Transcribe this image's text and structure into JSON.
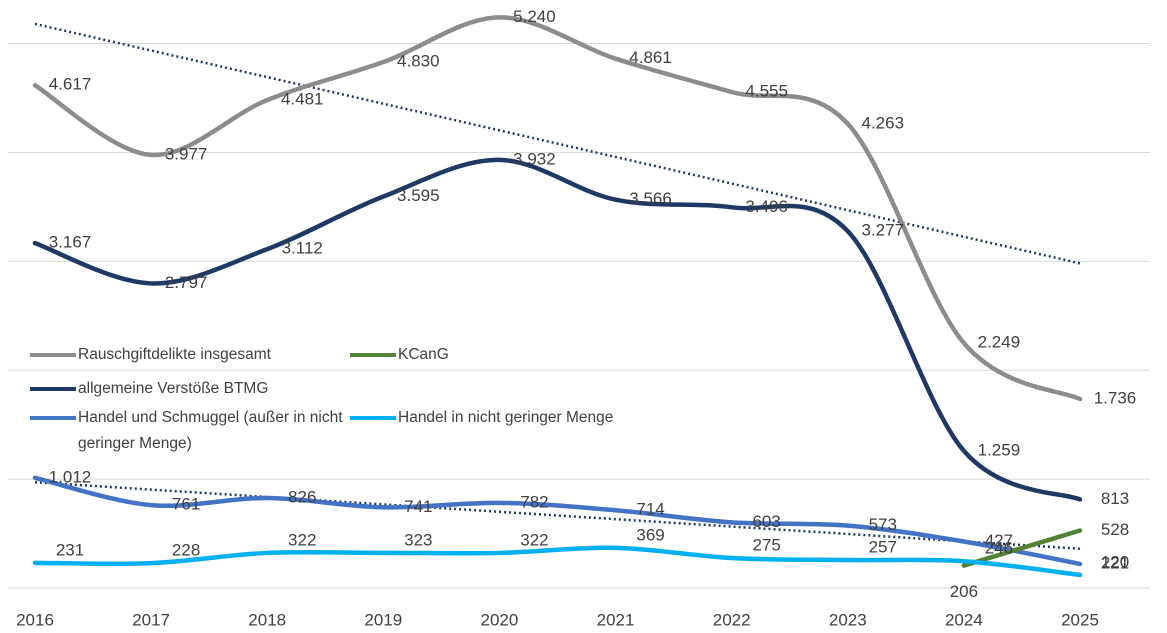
{
  "chart_data": {
    "type": "line",
    "categories": [
      "2016",
      "2017",
      "2018",
      "2019",
      "2020",
      "2021",
      "2022",
      "2023",
      "2024",
      "2025"
    ],
    "ylim": [
      0,
      5400
    ],
    "yticks": [
      0,
      1000,
      2000,
      3000,
      4000,
      5000
    ],
    "grid": true,
    "smooth": true,
    "series": [
      {
        "name": "Rauschgiftdelikte insgesamt",
        "color": "#8c8c8c",
        "trendline": true,
        "values": [
          4617,
          3977,
          4481,
          4830,
          5240,
          4861,
          4555,
          4263,
          2249,
          1736
        ],
        "value_labels": [
          "4.617",
          "3.977",
          "4.481",
          "4.830",
          "5.240",
          "4.861",
          "4.555",
          "4.263",
          "2.249",
          "1.736"
        ]
      },
      {
        "name": "allgemeine Verstöße BTMG",
        "color": "#1f3864",
        "values": [
          3167,
          2797,
          3112,
          3595,
          3932,
          3566,
          3496,
          3277,
          1259,
          813
        ],
        "value_labels": [
          "3.167",
          "2.797",
          "3.112",
          "3.595",
          "3.932",
          "3.566",
          "3.496",
          "3.277",
          "1.259",
          "813"
        ]
      },
      {
        "name": "Handel und Schmuggel (außer in nicht geringer Menge)",
        "color": "#4472c4",
        "trendline": true,
        "values": [
          1012,
          761,
          826,
          741,
          782,
          714,
          603,
          573,
          427,
          221
        ],
        "value_labels": [
          "1.012",
          "761",
          "826",
          "741",
          "782",
          "714",
          "603",
          "573",
          "427",
          "221"
        ]
      },
      {
        "name": "KCanG",
        "color": "#548235",
        "values": [
          null,
          null,
          null,
          null,
          null,
          null,
          null,
          null,
          206,
          528
        ]
      },
      {
        "name": "Handel in nicht geringer Menge",
        "color": "#00b0f0",
        "values": [
          231,
          228,
          322,
          323,
          322,
          369,
          275,
          257,
          246,
          120
        ]
      }
    ]
  }
}
